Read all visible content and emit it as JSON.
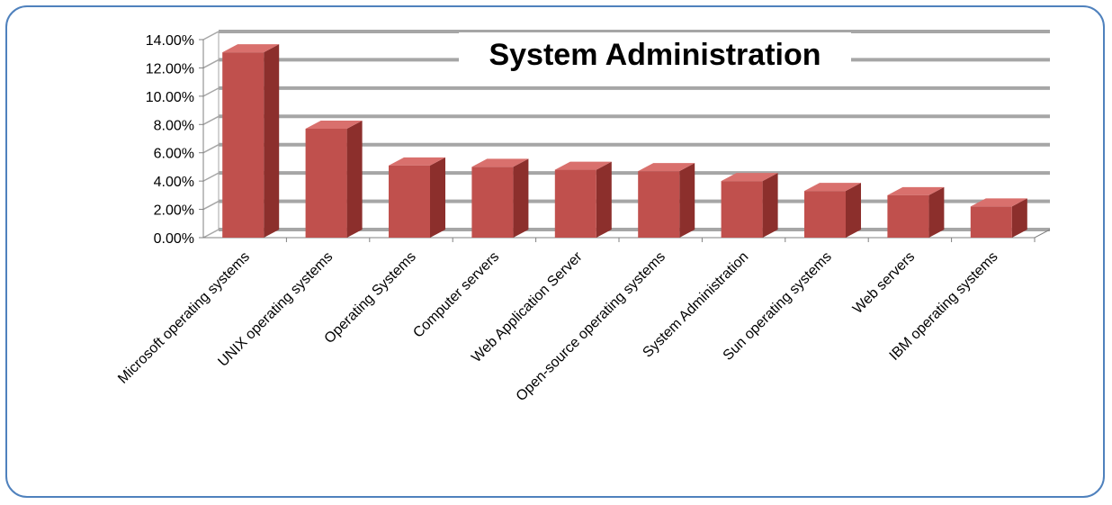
{
  "chart_data": {
    "type": "bar",
    "title": "System Administration",
    "categories": [
      "Microsoft operating systems",
      "UNIX operating systems",
      "Operating Systems",
      "Computer servers",
      "Web Application Server",
      "Open-source operating systems",
      "System Administration",
      "Sun operating systems",
      "Web servers",
      "IBM operating systems"
    ],
    "values": [
      0.131,
      0.077,
      0.051,
      0.05,
      0.048,
      0.047,
      0.04,
      0.033,
      0.03,
      0.022
    ],
    "ylim": [
      0,
      0.14
    ],
    "yticks": [
      "0.00%",
      "2.00%",
      "4.00%",
      "6.00%",
      "8.00%",
      "10.00%",
      "12.00%",
      "14.00%"
    ],
    "xlabel": "",
    "ylabel": "",
    "grid": true,
    "legend": "none",
    "colors": {
      "bar_front": "#c0504d",
      "bar_side": "#8c2f2c",
      "bar_top": "#d9706d",
      "grid": "#a6a6a6",
      "frame": "#4f81bd"
    }
  }
}
